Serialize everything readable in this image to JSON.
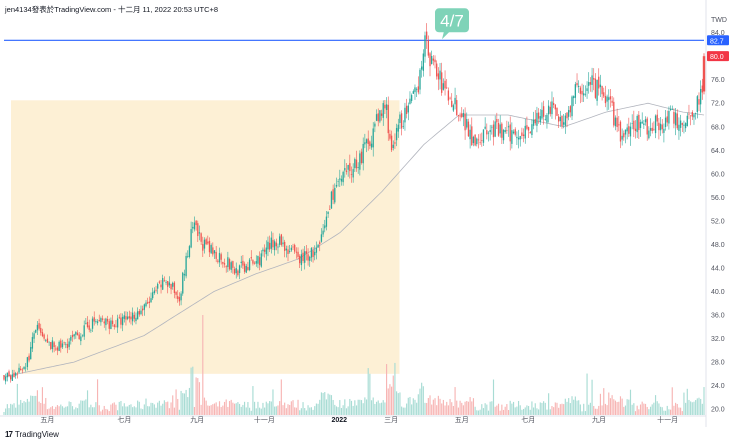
{
  "header": {
    "title": "jen4134發表於TradingView.com - 十二月 11, 2022 20:53 UTC+8"
  },
  "footer": {
    "brand": "TradingView",
    "logo_mark": "17"
  },
  "chart_data": {
    "type": "candlestick",
    "currency": "TWD",
    "ylim": [
      19,
      87
    ],
    "y_ticks": [
      20.0,
      24.0,
      28.0,
      32.0,
      36.0,
      40.0,
      44.0,
      48.0,
      52.0,
      56.0,
      60.0,
      64.0,
      68.0,
      72.0,
      76.0,
      80.0,
      84.0
    ],
    "x_ticks": [
      {
        "label": "五月",
        "pos": 0.062,
        "bold": false
      },
      {
        "label": "七月",
        "pos": 0.172,
        "bold": false
      },
      {
        "label": "九月",
        "pos": 0.276,
        "bold": false
      },
      {
        "label": "十一月",
        "pos": 0.372,
        "bold": false
      },
      {
        "label": "2022",
        "pos": 0.479,
        "bold": true
      },
      {
        "label": "三月",
        "pos": 0.553,
        "bold": false
      },
      {
        "label": "五月",
        "pos": 0.654,
        "bold": false
      },
      {
        "label": "七月",
        "pos": 0.749,
        "bold": false
      },
      {
        "label": "九月",
        "pos": 0.85,
        "bold": false
      },
      {
        "label": "十一月",
        "pos": 0.948,
        "bold": false
      }
    ],
    "price_anchors": [
      [
        0,
        25.5
      ],
      [
        0.02,
        26
      ],
      [
        0.035,
        28.5
      ],
      [
        0.045,
        34
      ],
      [
        0.06,
        31
      ],
      [
        0.08,
        30.5
      ],
      [
        0.1,
        32
      ],
      [
        0.13,
        35
      ],
      [
        0.16,
        34.5
      ],
      [
        0.2,
        37
      ],
      [
        0.23,
        42
      ],
      [
        0.25,
        39
      ],
      [
        0.27,
        51
      ],
      [
        0.29,
        47
      ],
      [
        0.31,
        46
      ],
      [
        0.33,
        43.5
      ],
      [
        0.36,
        45
      ],
      [
        0.39,
        49
      ],
      [
        0.42,
        45.5
      ],
      [
        0.45,
        47
      ],
      [
        0.47,
        57
      ],
      [
        0.49,
        60
      ],
      [
        0.51,
        63
      ],
      [
        0.53,
        68
      ],
      [
        0.545,
        72
      ],
      [
        0.555,
        63
      ],
      [
        0.565,
        69
      ],
      [
        0.575,
        70
      ],
      [
        0.59,
        74
      ],
      [
        0.6,
        82.5
      ],
      [
        0.615,
        78
      ],
      [
        0.63,
        74
      ],
      [
        0.65,
        71
      ],
      [
        0.67,
        66
      ],
      [
        0.7,
        67.5
      ],
      [
        0.72,
        66.5
      ],
      [
        0.75,
        68
      ],
      [
        0.78,
        71
      ],
      [
        0.8,
        69
      ],
      [
        0.82,
        74.5
      ],
      [
        0.84,
        75
      ],
      [
        0.86,
        73
      ],
      [
        0.87,
        70
      ],
      [
        0.885,
        65.5
      ],
      [
        0.9,
        69
      ],
      [
        0.92,
        68
      ],
      [
        0.95,
        69.5
      ],
      [
        0.97,
        69
      ],
      [
        0.985,
        70.5
      ],
      [
        0.995,
        74
      ],
      [
        1.0,
        75
      ]
    ],
    "ma_anchors": [
      [
        0,
        25.5
      ],
      [
        0.1,
        28
      ],
      [
        0.2,
        32.5
      ],
      [
        0.3,
        40
      ],
      [
        0.36,
        43
      ],
      [
        0.42,
        45.5
      ],
      [
        0.48,
        50
      ],
      [
        0.54,
        57
      ],
      [
        0.6,
        65
      ],
      [
        0.65,
        70
      ],
      [
        0.72,
        70
      ],
      [
        0.8,
        68
      ],
      [
        0.86,
        70.5
      ],
      [
        0.92,
        72
      ],
      [
        0.97,
        70.5
      ],
      [
        1.0,
        70
      ]
    ],
    "last_candle": {
      "open": 74,
      "close": 80.0,
      "high": 80.5,
      "low": 73.5
    },
    "horizontal_line": {
      "value": 82.7,
      "label": "82.7",
      "color": "#2962ff"
    },
    "current_price": {
      "value": 80.0,
      "label": "80.0",
      "color": "#f23645"
    },
    "highlight_zone": {
      "x_start": 0.01,
      "x_end": 0.565,
      "y_low": 26,
      "y_high": 72.5,
      "color": "#fdf0d5"
    },
    "annotation": {
      "text": "4/7",
      "at": 0.6,
      "value": 82.7,
      "color": "#7fd3b8"
    },
    "colors": {
      "up": "#26a69a",
      "down": "#ef5350",
      "up_volume": "#a8dcd4",
      "down_volume": "#f7b5b4",
      "ma": "#b2b5be"
    }
  }
}
